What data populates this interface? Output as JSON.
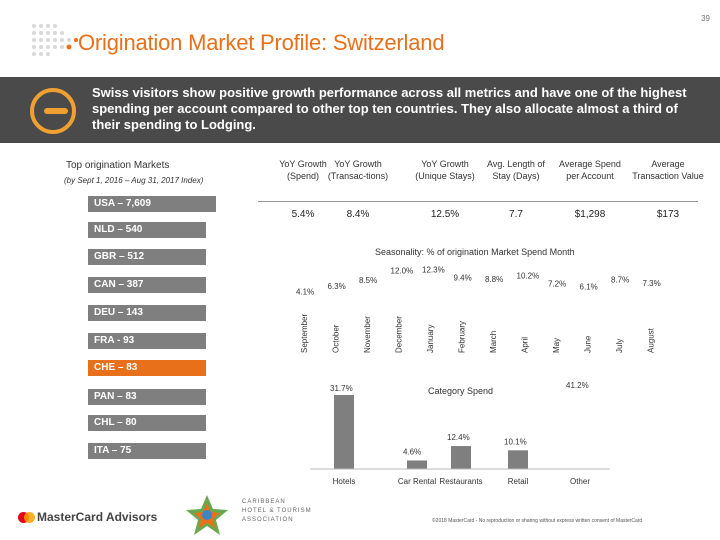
{
  "page_number": "39",
  "title": "Origination Market Profile: Switzerland",
  "banner_text": "Swiss visitors show positive growth performance across all metrics and have one of the highest spending per account compared to other top ten countries. They also allocate almost a third of their spending to Lodging.",
  "markets": {
    "title": "Top origination Markets",
    "subtitle": "(by Sept 1, 2016 – Aug 31, 2017 Index)",
    "items": [
      {
        "label": "USA – 7,609",
        "highlight": false
      },
      {
        "label": "NLD – 540",
        "highlight": false
      },
      {
        "label": "GBR – 512",
        "highlight": false
      },
      {
        "label": "CAN – 387",
        "highlight": false
      },
      {
        "label": "DEU – 143",
        "highlight": false
      },
      {
        "label": "FRA - 93",
        "highlight": false
      },
      {
        "label": "CHE – 83",
        "highlight": true
      },
      {
        "label": "PAN – 83",
        "highlight": false
      },
      {
        "label": "CHL – 80",
        "highlight": false
      },
      {
        "label": "ITA – 75",
        "highlight": false
      }
    ]
  },
  "metrics": {
    "headers": [
      "YoY Growth (Spend)",
      "YoY Growth (Transac-tions)",
      "YoY Growth (Unique Stays)",
      "Avg. Length of Stay (Days)",
      "Average Spend per Account",
      "Average Transaction Value"
    ],
    "values": [
      "5.4%",
      "8.4%",
      "12.5%",
      "7.7",
      "$1,298",
      "$173"
    ]
  },
  "chart_data": [
    {
      "type": "line",
      "title": "Seasonality: % of origination Market Spend Month",
      "categories": [
        "September",
        "October",
        "November",
        "December",
        "January",
        "February",
        "March",
        "April",
        "May",
        "June",
        "July",
        "August"
      ],
      "values": [
        4.1,
        6.3,
        8.5,
        12.0,
        12.3,
        9.4,
        8.8,
        10.2,
        7.2,
        6.1,
        8.7,
        7.3
      ],
      "value_labels": [
        "4.1%",
        "6.3%",
        "8.5%",
        "12.0%",
        "12.3%",
        "9.4%",
        "8.8%",
        "10.2%",
        "7.2%",
        "6.1%",
        "8.7%",
        "7.3%"
      ]
    },
    {
      "type": "bar",
      "title": "Category Spend",
      "categories": [
        "Hotels",
        "Car Rental",
        "Restaurants",
        "Retail",
        "Other"
      ],
      "values": [
        31.7,
        4.6,
        12.4,
        10.1,
        41.2
      ],
      "value_labels": [
        "31.7%",
        "4.6%",
        "12.4%",
        "10.1%",
        "41.2%"
      ],
      "ylim": [
        0,
        45
      ],
      "bar_color": "#7f7f7f"
    }
  ],
  "footer": {
    "brand": "MasterCard Advisors",
    "partner": [
      "CARIBBEAN",
      "HOTEL & TOURISM",
      "ASSOCIATION"
    ],
    "copyright": "©2018 MasterCard - No reproduction or sharing without express written consent of MasterCard"
  },
  "colors": {
    "accent": "#e8701a",
    "banner": "#4a4a4a",
    "bar_grey": "#7f7f7f"
  }
}
